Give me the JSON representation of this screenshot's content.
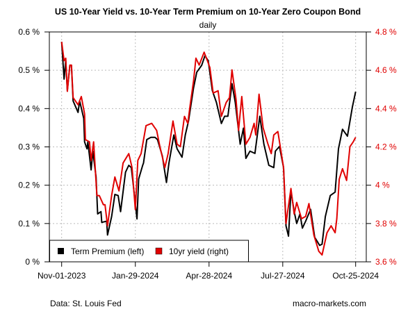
{
  "chart_data": {
    "type": "line",
    "title": "US 10-Year Yield vs. 10-Year Term Premium on 10-Year Zero Coupon Bond",
    "subtitle": "daily",
    "x_unit": "days since Nov-01-2023",
    "x_ticks": [
      {
        "day": 0,
        "label": "Nov-01-2023"
      },
      {
        "day": 90,
        "label": "Jan-29-2024"
      },
      {
        "day": 180,
        "label": "Apr-28-2024"
      },
      {
        "day": 270,
        "label": "Jul-27-2024"
      },
      {
        "day": 359,
        "label": "Oct-25-2024"
      }
    ],
    "xlim": [
      0,
      359
    ],
    "left_axis": {
      "ylim": [
        0,
        0.6
      ],
      "ticks": [
        0,
        0.1,
        0.2,
        0.3,
        0.4,
        0.5,
        0.6
      ],
      "labels": [
        "0 %",
        "0.1 %",
        "0.2 %",
        "0.3 %",
        "0.4 %",
        "0.5 %",
        "0.6 %"
      ]
    },
    "right_axis": {
      "ylim": [
        3.6,
        4.8
      ],
      "ticks": [
        3.6,
        3.8,
        4.0,
        4.2,
        4.4,
        4.6,
        4.8
      ],
      "labels": [
        "3.6 %",
        "3.8 %",
        "4 %",
        "4.2 %",
        "4.4 %",
        "4.6 %",
        "4.8 %"
      ]
    },
    "grid": true,
    "legend_position": "bottom-left",
    "series": [
      {
        "name": "Term Premium (left)",
        "axis": "left",
        "color": "#000000",
        "points": [
          [
            0,
            0.574
          ],
          [
            3,
            0.477
          ],
          [
            5,
            0.525
          ],
          [
            7,
            0.447
          ],
          [
            10,
            0.513
          ],
          [
            12,
            0.513
          ],
          [
            14,
            0.42
          ],
          [
            20,
            0.39
          ],
          [
            22,
            0.42
          ],
          [
            27,
            0.374
          ],
          [
            28,
            0.313
          ],
          [
            31,
            0.295
          ],
          [
            32,
            0.313
          ],
          [
            36,
            0.24
          ],
          [
            38,
            0.289
          ],
          [
            42,
            0.222
          ],
          [
            44,
            0.125
          ],
          [
            48,
            0.131
          ],
          [
            49,
            0.103
          ],
          [
            55,
            0.106
          ],
          [
            56,
            0.07
          ],
          [
            61,
            0.118
          ],
          [
            65,
            0.176
          ],
          [
            69,
            0.173
          ],
          [
            72,
            0.131
          ],
          [
            78,
            0.234
          ],
          [
            82,
            0.252
          ],
          [
            85,
            0.246
          ],
          [
            87,
            0.21
          ],
          [
            92,
            0.112
          ],
          [
            94,
            0.216
          ],
          [
            99,
            0.252
          ],
          [
            100,
            0.258
          ],
          [
            104,
            0.319
          ],
          [
            109,
            0.325
          ],
          [
            114,
            0.325
          ],
          [
            117,
            0.319
          ],
          [
            123,
            0.276
          ],
          [
            128,
            0.207
          ],
          [
            131,
            0.258
          ],
          [
            137,
            0.331
          ],
          [
            141,
            0.295
          ],
          [
            147,
            0.273
          ],
          [
            151,
            0.331
          ],
          [
            155,
            0.368
          ],
          [
            161,
            0.453
          ],
          [
            165,
            0.495
          ],
          [
            171,
            0.513
          ],
          [
            175,
            0.538
          ],
          [
            179,
            0.525
          ],
          [
            184,
            0.447
          ],
          [
            189,
            0.416
          ],
          [
            195,
            0.361
          ],
          [
            199,
            0.38
          ],
          [
            203,
            0.38
          ],
          [
            208,
            0.465
          ],
          [
            212,
            0.416
          ],
          [
            218,
            0.307
          ],
          [
            222,
            0.349
          ],
          [
            225,
            0.27
          ],
          [
            230,
            0.289
          ],
          [
            236,
            0.283
          ],
          [
            242,
            0.38
          ],
          [
            247,
            0.307
          ],
          [
            253,
            0.252
          ],
          [
            259,
            0.246
          ],
          [
            261,
            0.289
          ],
          [
            266,
            0.301
          ],
          [
            271,
            0.246
          ],
          [
            274,
            0.094
          ],
          [
            277,
            0.067
          ],
          [
            280,
            0.185
          ],
          [
            284,
            0.131
          ],
          [
            287,
            0.1
          ],
          [
            291,
            0.125
          ],
          [
            294,
            0.088
          ],
          [
            298,
            0.106
          ],
          [
            304,
            0.137
          ],
          [
            309,
            0.064
          ],
          [
            315,
            0.043
          ],
          [
            318,
            0.046
          ],
          [
            322,
            0.118
          ],
          [
            328,
            0.173
          ],
          [
            334,
            0.182
          ],
          [
            338,
            0.295
          ],
          [
            343,
            0.346
          ],
          [
            349,
            0.328
          ],
          [
            355,
            0.404
          ],
          [
            359,
            0.444
          ]
        ]
      },
      {
        "name": "10yr yield (right)",
        "axis": "right",
        "color": "#e00000",
        "points": [
          [
            0,
            4.748
          ],
          [
            3,
            4.65
          ],
          [
            5,
            4.663
          ],
          [
            7,
            4.49
          ],
          [
            10,
            4.627
          ],
          [
            12,
            4.627
          ],
          [
            14,
            4.457
          ],
          [
            20,
            4.42
          ],
          [
            24,
            4.463
          ],
          [
            28,
            4.372
          ],
          [
            29,
            4.238
          ],
          [
            34,
            4.226
          ],
          [
            36,
            4.129
          ],
          [
            39,
            4.226
          ],
          [
            43,
            3.946
          ],
          [
            46,
            3.946
          ],
          [
            51,
            3.898
          ],
          [
            53,
            3.898
          ],
          [
            56,
            3.788
          ],
          [
            61,
            3.946
          ],
          [
            65,
            4.043
          ],
          [
            70,
            3.97
          ],
          [
            75,
            4.116
          ],
          [
            82,
            4.165
          ],
          [
            86,
            4.092
          ],
          [
            90,
            3.873
          ],
          [
            93,
            4.129
          ],
          [
            97,
            4.165
          ],
          [
            103,
            4.311
          ],
          [
            110,
            4.323
          ],
          [
            116,
            4.286
          ],
          [
            120,
            4.201
          ],
          [
            126,
            4.092
          ],
          [
            130,
            4.165
          ],
          [
            136,
            4.335
          ],
          [
            141,
            4.214
          ],
          [
            145,
            4.201
          ],
          [
            150,
            4.359
          ],
          [
            154,
            4.323
          ],
          [
            157,
            4.42
          ],
          [
            161,
            4.542
          ],
          [
            164,
            4.663
          ],
          [
            168,
            4.627
          ],
          [
            174,
            4.694
          ],
          [
            178,
            4.65
          ],
          [
            181,
            4.614
          ],
          [
            185,
            4.481
          ],
          [
            191,
            4.493
          ],
          [
            195,
            4.359
          ],
          [
            201,
            4.432
          ],
          [
            205,
            4.457
          ],
          [
            208,
            4.602
          ],
          [
            213,
            4.445
          ],
          [
            216,
            4.286
          ],
          [
            220,
            4.463
          ],
          [
            225,
            4.214
          ],
          [
            230,
            4.25
          ],
          [
            235,
            4.323
          ],
          [
            237,
            4.262
          ],
          [
            241,
            4.475
          ],
          [
            246,
            4.299
          ],
          [
            252,
            4.214
          ],
          [
            256,
            4.165
          ],
          [
            259,
            4.262
          ],
          [
            264,
            4.28
          ],
          [
            271,
            4.092
          ],
          [
            274,
            3.8
          ],
          [
            280,
            3.983
          ],
          [
            284,
            3.849
          ],
          [
            287,
            3.91
          ],
          [
            293,
            3.825
          ],
          [
            298,
            3.837
          ],
          [
            302,
            3.904
          ],
          [
            308,
            3.74
          ],
          [
            314,
            3.655
          ],
          [
            318,
            3.636
          ],
          [
            324,
            3.752
          ],
          [
            329,
            3.788
          ],
          [
            334,
            3.752
          ],
          [
            336,
            3.825
          ],
          [
            339,
            4.031
          ],
          [
            343,
            4.086
          ],
          [
            348,
            4.025
          ],
          [
            352,
            4.201
          ],
          [
            356,
            4.226
          ],
          [
            359,
            4.25
          ]
        ]
      }
    ],
    "footer_left": "Data: St. Louis Fed",
    "footer_right": "macro-markets.com"
  }
}
